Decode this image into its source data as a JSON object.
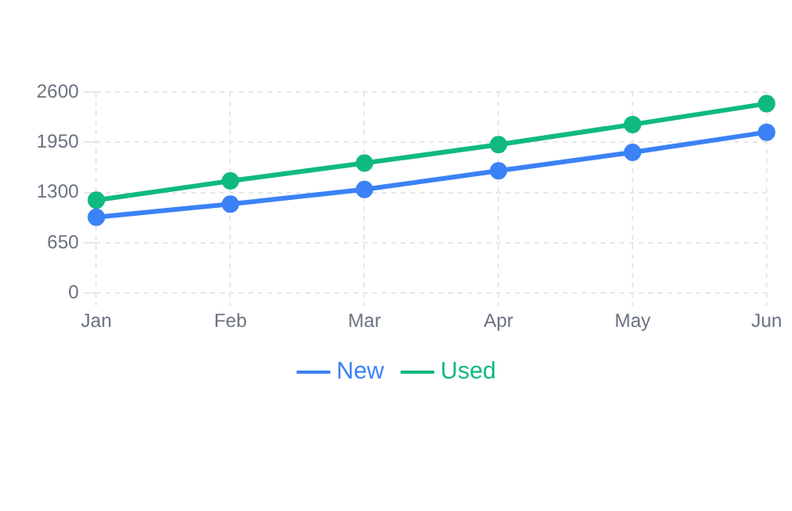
{
  "chart_data": {
    "type": "line",
    "categories": [
      "Jan",
      "Feb",
      "Mar",
      "Apr",
      "May",
      "Jun"
    ],
    "series": [
      {
        "name": "New",
        "color": "#3b82f6",
        "values": [
          980,
          1150,
          1340,
          1580,
          1820,
          2080
        ]
      },
      {
        "name": "Used",
        "color": "#10b981",
        "values": [
          1200,
          1450,
          1680,
          1920,
          2180,
          2450
        ]
      }
    ],
    "ylim": [
      0,
      2600
    ],
    "yticks": [
      0,
      650,
      1300,
      1950,
      2600
    ],
    "grid": true,
    "legend": "bottom",
    "marker": "circle",
    "line_style": "solid"
  }
}
